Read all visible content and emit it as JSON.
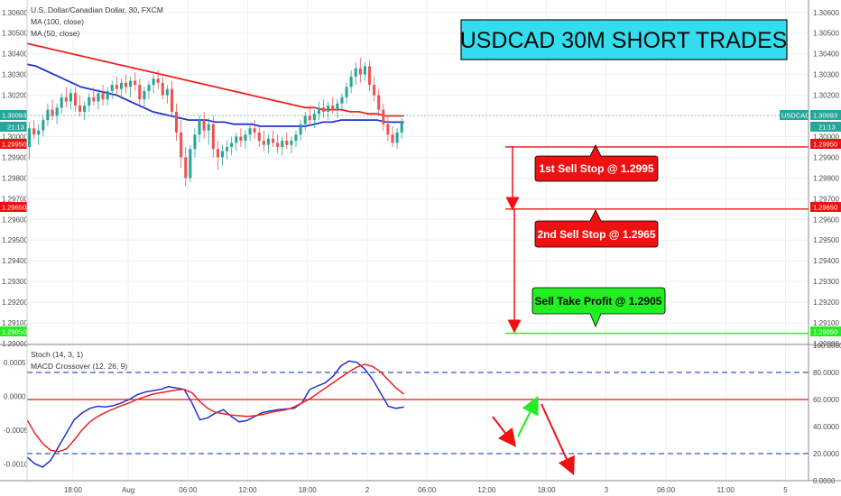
{
  "header": {
    "symbol_line": "U.S. Dollar/Canadian Dollar, 30, FXCM",
    "ma100_label": "MA (100, close)",
    "ma50_label": "MA (50, close)",
    "lower_stoch_label": "Stoch (14, 3, 1)",
    "lower_macd_label": "MACD Crossover (12, 26, 9)"
  },
  "title_banner": {
    "text": "USDCAD 30M SHORT TRADES",
    "bg_color": "#33ddee"
  },
  "price_tags": {
    "current_symbol_left": "1.30093",
    "current_symbol_right": "USDCAD",
    "current_value_right": "1.30093",
    "countdown": "21:13",
    "level_1": "1.29950",
    "level_2": "1.29650",
    "level_3": "1.29050"
  },
  "callouts": [
    {
      "text": "1st Sell Stop @ 1.2995",
      "bg": "#ee1111",
      "fg": "#ffffff",
      "price": 1.2995
    },
    {
      "text": "2nd Sell Stop @ 1.2965",
      "bg": "#ee1111",
      "fg": "#ffffff",
      "price": 1.2965
    },
    {
      "text": "Sell Take Profit @ 1.2905",
      "bg": "#22ee22",
      "fg": "#0a0a0a",
      "price": 1.2905
    }
  ],
  "chart_data": [
    {
      "type": "candlestick",
      "title": "U.S. Dollar/Canadian Dollar, 30, FXCM",
      "yticks": [
        "1.30600",
        "1.30500",
        "1.30400",
        "1.30300",
        "1.30200",
        "1.30100",
        "1.30000",
        "1.29900",
        "1.29800",
        "1.29700",
        "1.29600",
        "1.29500",
        "1.29400",
        "1.29300",
        "1.29200",
        "1.29100",
        "1.29000"
      ],
      "ylim": [
        1.29,
        1.3066
      ],
      "xticks": [
        "18:00",
        "Aug",
        "06:00",
        "12:00",
        "18:00",
        "2",
        "06:00",
        "12:00",
        "18:00",
        "3",
        "06:00",
        "11:00",
        "5"
      ],
      "xtick_index": [
        10,
        22,
        35,
        48,
        61,
        74,
        87,
        100,
        113,
        126,
        139,
        152,
        165
      ],
      "x_range": [
        0,
        170
      ],
      "grid": true,
      "colors": {
        "up": "#26a69a",
        "down": "#ef5350",
        "ma100": "#ee2222",
        "ma50": "#2233cc"
      },
      "candles": [
        [
          1.2995,
          1.3007,
          1.2989,
          1.3004
        ],
        [
          1.3004,
          1.3008,
          1.2999,
          1.3001
        ],
        [
          1.3001,
          1.3006,
          1.2996,
          1.3003
        ],
        [
          1.3003,
          1.301,
          1.3,
          1.3008
        ],
        [
          1.3008,
          1.3016,
          1.3005,
          1.3013
        ],
        [
          1.3013,
          1.3018,
          1.3008,
          1.301
        ],
        [
          1.301,
          1.3016,
          1.3006,
          1.3014
        ],
        [
          1.3014,
          1.3021,
          1.3011,
          1.3019
        ],
        [
          1.3019,
          1.3024,
          1.3014,
          1.3017
        ],
        [
          1.3017,
          1.3023,
          1.3013,
          1.3021
        ],
        [
          1.3021,
          1.3024,
          1.3012,
          1.3015
        ],
        [
          1.3015,
          1.302,
          1.301,
          1.3012
        ],
        [
          1.3012,
          1.3017,
          1.3008,
          1.3015
        ],
        [
          1.3015,
          1.3021,
          1.3012,
          1.3019
        ],
        [
          1.3019,
          1.3024,
          1.3015,
          1.3017
        ],
        [
          1.3017,
          1.3023,
          1.3013,
          1.3021
        ],
        [
          1.3021,
          1.3025,
          1.3015,
          1.3018
        ],
        [
          1.3018,
          1.3024,
          1.3015,
          1.3022
        ],
        [
          1.3022,
          1.3027,
          1.3018,
          1.3025
        ],
        [
          1.3025,
          1.3029,
          1.302,
          1.3023
        ],
        [
          1.3023,
          1.3028,
          1.3018,
          1.3026
        ],
        [
          1.3026,
          1.303,
          1.3021,
          1.3024
        ],
        [
          1.3024,
          1.3029,
          1.3019,
          1.3027
        ],
        [
          1.3027,
          1.3031,
          1.3022,
          1.3025
        ],
        [
          1.3025,
          1.3028,
          1.3015,
          1.3018
        ],
        [
          1.3018,
          1.3024,
          1.3014,
          1.3022
        ],
        [
          1.3022,
          1.3027,
          1.3018,
          1.3025
        ],
        [
          1.3025,
          1.303,
          1.3021,
          1.3028
        ],
        [
          1.3028,
          1.3032,
          1.3023,
          1.3026
        ],
        [
          1.3026,
          1.3029,
          1.3018,
          1.302
        ],
        [
          1.302,
          1.3025,
          1.3016,
          1.3023
        ],
        [
          1.3023,
          1.3027,
          1.301,
          1.3012
        ],
        [
          1.3012,
          1.3016,
          1.2998,
          1.3002
        ],
        [
          1.3002,
          1.3008,
          1.2985,
          1.299
        ],
        [
          1.299,
          1.2995,
          1.2976,
          1.298
        ],
        [
          1.298,
          1.2996,
          1.2978,
          1.2994
        ],
        [
          1.2994,
          1.3004,
          1.299,
          1.3001
        ],
        [
          1.3001,
          1.301,
          1.2997,
          1.3008
        ],
        [
          1.3008,
          1.3012,
          1.2999,
          1.3003
        ],
        [
          1.3003,
          1.3009,
          1.2996,
          1.3006
        ],
        [
          1.3006,
          1.301,
          1.299,
          1.2994
        ],
        [
          1.2994,
          1.2998,
          1.2984,
          1.299
        ],
        [
          1.299,
          1.2996,
          1.2986,
          1.2993
        ],
        [
          1.2993,
          1.2998,
          1.2989,
          1.2995
        ],
        [
          1.2995,
          1.3,
          1.2991,
          1.2997
        ],
        [
          1.2997,
          1.3002,
          1.2993,
          1.3
        ],
        [
          1.3,
          1.3004,
          1.2995,
          1.2998
        ],
        [
          1.2998,
          1.3003,
          1.2994,
          1.3001
        ],
        [
          1.3001,
          1.3006,
          1.2998,
          1.3004
        ],
        [
          1.3004,
          1.3008,
          1.2999,
          1.3002
        ],
        [
          1.3002,
          1.3005,
          1.2995,
          1.2998
        ],
        [
          1.2998,
          1.3003,
          1.2993,
          1.2996
        ],
        [
          1.2996,
          1.3001,
          1.2992,
          1.2999
        ],
        [
          1.2999,
          1.3003,
          1.2995,
          1.2997
        ],
        [
          1.2997,
          1.3001,
          1.2992,
          1.2995
        ],
        [
          1.2995,
          1.3,
          1.2991,
          1.2998
        ],
        [
          1.2998,
          1.3002,
          1.2994,
          1.2996
        ],
        [
          1.2996,
          1.3,
          1.2992,
          1.2998
        ],
        [
          1.2998,
          1.3003,
          1.2995,
          1.3001
        ],
        [
          1.3001,
          1.3008,
          1.2998,
          1.3006
        ],
        [
          1.3006,
          1.3012,
          1.3003,
          1.301
        ],
        [
          1.301,
          1.3015,
          1.3005,
          1.3008
        ],
        [
          1.3008,
          1.3013,
          1.3004,
          1.3011
        ],
        [
          1.3011,
          1.3017,
          1.3008,
          1.3014
        ],
        [
          1.3014,
          1.3018,
          1.3009,
          1.3012
        ],
        [
          1.3012,
          1.3017,
          1.3008,
          1.3015
        ],
        [
          1.3015,
          1.3019,
          1.3011,
          1.3013
        ],
        [
          1.3013,
          1.3018,
          1.3009,
          1.3016
        ],
        [
          1.3016,
          1.3021,
          1.3013,
          1.3019
        ],
        [
          1.3019,
          1.3026,
          1.3016,
          1.3024
        ],
        [
          1.3024,
          1.3032,
          1.3021,
          1.3029
        ],
        [
          1.3029,
          1.3036,
          1.3025,
          1.3033
        ],
        [
          1.3033,
          1.3038,
          1.3026,
          1.303
        ],
        [
          1.303,
          1.3036,
          1.3027,
          1.3034
        ],
        [
          1.3034,
          1.3037,
          1.3022,
          1.3025
        ],
        [
          1.3025,
          1.3029,
          1.3017,
          1.302
        ],
        [
          1.302,
          1.3023,
          1.301,
          1.3013
        ],
        [
          1.3013,
          1.3016,
          1.3003,
          1.3006
        ],
        [
          1.3006,
          1.301,
          1.2998,
          1.3001
        ],
        [
          1.3001,
          1.3005,
          1.2995,
          1.2997
        ],
        [
          1.2997,
          1.3004,
          1.2994,
          1.3002
        ],
        [
          1.3002,
          1.3009,
          1.2999,
          1.3007
        ]
      ],
      "ma100": [
        1.3045,
        1.3044,
        1.3043,
        1.3042,
        1.3041,
        1.304,
        1.3039,
        1.3038,
        1.3037,
        1.3036,
        1.3035,
        1.3034,
        1.3033,
        1.3032,
        1.3031,
        1.303,
        1.3029,
        1.3028,
        1.3027,
        1.3026,
        1.3025,
        1.3024,
        1.3023,
        1.3022,
        1.3021,
        1.302,
        1.3019,
        1.3018,
        1.3017,
        1.3016,
        1.3015,
        1.3014,
        1.3014,
        1.3013,
        1.3013,
        1.3013,
        1.3012,
        1.3012,
        1.3011,
        1.3011,
        1.301,
        1.301,
        1.301
      ],
      "ma50": [
        1.3035,
        1.3034,
        1.3032,
        1.303,
        1.3028,
        1.3026,
        1.3024,
        1.3023,
        1.3022,
        1.3021,
        1.302,
        1.3018,
        1.3016,
        1.3014,
        1.3012,
        1.3011,
        1.301,
        1.3009,
        1.3008,
        1.3008,
        1.3008,
        1.3007,
        1.3007,
        1.3006,
        1.3006,
        1.3006,
        1.3005,
        1.3005,
        1.3005,
        1.3005,
        1.3005,
        1.3005,
        1.3006,
        1.3007,
        1.3007,
        1.3008,
        1.3008,
        1.3008,
        1.3008,
        1.3008,
        1.3007,
        1.3007,
        1.3007
      ],
      "levels": [
        {
          "price": 1.2995,
          "color": "#ee1111"
        },
        {
          "price": 1.2965,
          "color": "#ee1111"
        },
        {
          "price": 1.2905,
          "color": "#22ee22"
        }
      ]
    },
    {
      "type": "line",
      "title": "MACD Crossover (12, 26, 9)",
      "yticks_left": [
        "0.0005",
        "0.0000",
        "-0.0005",
        "-0.0010"
      ],
      "ylim_left": [
        -0.00125,
        0.00075
      ],
      "yticks_right": [
        "100.0000",
        "80.0000",
        "60.0000",
        "40.0000",
        "20.0000",
        "0.0000"
      ],
      "ylim_right": [
        0,
        100
      ],
      "reference_lines": [
        {
          "value_right": 80,
          "style": "dashed",
          "color": "#3355cc"
        },
        {
          "value_right": 60,
          "style": "solid",
          "color": "#ee1111"
        },
        {
          "value_right": 20,
          "style": "dashed",
          "color": "#3355cc"
        }
      ],
      "series": [
        {
          "name": "",
          "color": "#2233cc",
          "values": [
            -0.0009,
            -0.001,
            -0.00105,
            -0.00095,
            -0.00075,
            -0.00055,
            -0.00035,
            -0.00025,
            -0.00018,
            -0.00015,
            -0.00016,
            -0.00014,
            -0.0001,
            -5e-05,
            2e-05,
            6e-05,
            8e-05,
            0.0001,
            0.00014,
            0.00012,
            0.0001,
            -0.0001,
            -0.00035,
            -0.00032,
            -0.00025,
            -0.0002,
            -0.0003,
            -0.00038,
            -0.00036,
            -0.0003,
            -0.00024,
            -0.00022,
            -0.0002,
            -0.00019,
            -0.00018,
            -0.0001,
            0.0001,
            0.00015,
            0.0002,
            0.0003,
            0.00045,
            0.00052,
            0.0005,
            0.0004,
            0.00025,
            5e-05,
            -0.00015,
            -0.00018,
            -0.00016
          ]
        },
        {
          "name": "",
          "color": "#ee2222",
          "values": [
            -0.00035,
            -0.00055,
            -0.0007,
            -0.0008,
            -0.00082,
            -0.00078,
            -0.00065,
            -0.0005,
            -0.00038,
            -0.0003,
            -0.00024,
            -0.00019,
            -0.00014,
            -0.0001,
            -5e-05,
            -1e-05,
            3e-05,
            5e-05,
            7e-05,
            9e-05,
            0.0001,
            5e-05,
            -8e-05,
            -0.00018,
            -0.00024,
            -0.00026,
            -0.00028,
            -0.00029,
            -0.0003,
            -0.00029,
            -0.00027,
            -0.00024,
            -0.00022,
            -0.0002,
            -0.00016,
            -0.0001,
            -4e-05,
            4e-05,
            0.00012,
            0.0002,
            0.00028,
            0.00036,
            0.00043,
            0.00047,
            0.00044,
            0.00036,
            0.00024,
            0.00012,
            3e-05
          ]
        }
      ]
    }
  ]
}
